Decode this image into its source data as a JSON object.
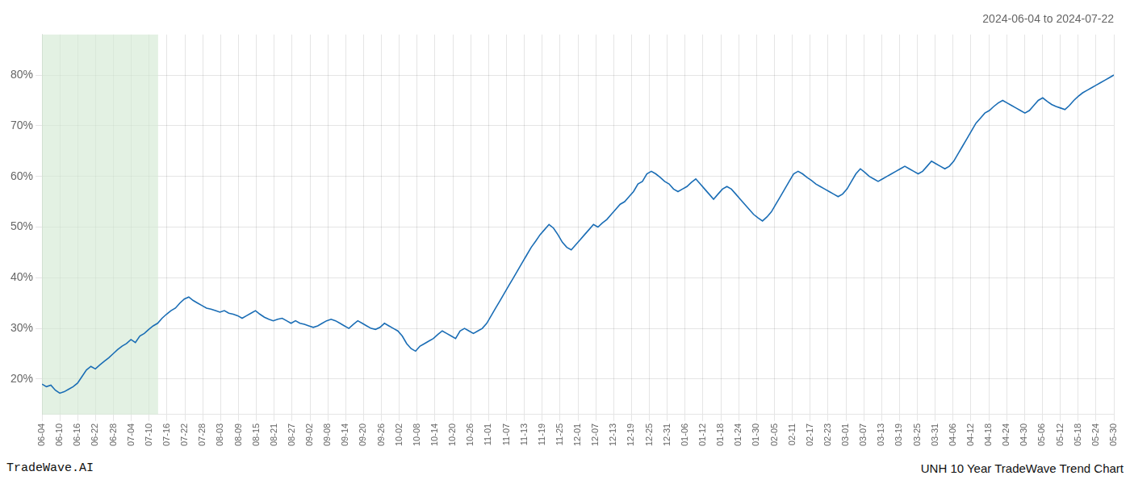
{
  "chart_data": {
    "type": "line",
    "title": "2024-06-04 to 2024-07-22",
    "footer_left": "TradeWave.AI",
    "footer_right": "UNH 10 Year TradeWave Trend Chart",
    "color": "#1a6db5",
    "grid": true,
    "xlim": [
      0,
      241
    ],
    "xticks": [
      {
        "value": 0,
        "label": "06-04"
      },
      {
        "value": 4.0167,
        "label": "06-10"
      },
      {
        "value": 8.0333,
        "label": "06-16"
      },
      {
        "value": 12.05,
        "label": "06-22"
      },
      {
        "value": 16.0667,
        "label": "06-28"
      },
      {
        "value": 20.0833,
        "label": "07-04"
      },
      {
        "value": 24.1,
        "label": "07-10"
      },
      {
        "value": 28.1167,
        "label": "07-16"
      },
      {
        "value": 32.1333,
        "label": "07-22"
      },
      {
        "value": 36.15,
        "label": "07-28"
      },
      {
        "value": 40.1667,
        "label": "08-03"
      },
      {
        "value": 44.1833,
        "label": "08-09"
      },
      {
        "value": 48.2,
        "label": "08-15"
      },
      {
        "value": 52.2167,
        "label": "08-21"
      },
      {
        "value": 56.2333,
        "label": "08-27"
      },
      {
        "value": 60.25,
        "label": "09-02"
      },
      {
        "value": 64.2667,
        "label": "09-08"
      },
      {
        "value": 68.2833,
        "label": "09-14"
      },
      {
        "value": 72.3,
        "label": "09-20"
      },
      {
        "value": 76.3167,
        "label": "09-26"
      },
      {
        "value": 80.3333,
        "label": "10-02"
      },
      {
        "value": 84.35,
        "label": "10-08"
      },
      {
        "value": 88.3667,
        "label": "10-14"
      },
      {
        "value": 92.3833,
        "label": "10-20"
      },
      {
        "value": 96.4,
        "label": "10-26"
      },
      {
        "value": 100.4167,
        "label": "11-01"
      },
      {
        "value": 104.4333,
        "label": "11-07"
      },
      {
        "value": 108.45,
        "label": "11-13"
      },
      {
        "value": 112.4667,
        "label": "11-19"
      },
      {
        "value": 116.4833,
        "label": "11-25"
      },
      {
        "value": 120.5,
        "label": "12-01"
      },
      {
        "value": 124.5167,
        "label": "12-07"
      },
      {
        "value": 128.5333,
        "label": "12-13"
      },
      {
        "value": 132.55,
        "label": "12-19"
      },
      {
        "value": 136.5667,
        "label": "12-25"
      },
      {
        "value": 140.5833,
        "label": "12-31"
      },
      {
        "value": 144.6,
        "label": "01-06"
      },
      {
        "value": 148.6167,
        "label": "01-12"
      },
      {
        "value": 152.6333,
        "label": "01-18"
      },
      {
        "value": 156.65,
        "label": "01-24"
      },
      {
        "value": 160.6667,
        "label": "01-30"
      },
      {
        "value": 164.6833,
        "label": "02-05"
      },
      {
        "value": 168.7,
        "label": "02-11"
      },
      {
        "value": 172.7167,
        "label": "02-17"
      },
      {
        "value": 176.7333,
        "label": "02-23"
      },
      {
        "value": 180.75,
        "label": "03-01"
      },
      {
        "value": 184.7667,
        "label": "03-07"
      },
      {
        "value": 188.7833,
        "label": "03-13"
      },
      {
        "value": 192.8,
        "label": "03-19"
      },
      {
        "value": 196.8167,
        "label": "03-25"
      },
      {
        "value": 200.8333,
        "label": "03-31"
      },
      {
        "value": 204.85,
        "label": "04-06"
      },
      {
        "value": 208.8667,
        "label": "04-12"
      },
      {
        "value": 212.8833,
        "label": "04-18"
      },
      {
        "value": 216.9,
        "label": "04-24"
      },
      {
        "value": 220.9167,
        "label": "04-30"
      },
      {
        "value": 224.9333,
        "label": "05-06"
      },
      {
        "value": 228.95,
        "label": "05-12"
      },
      {
        "value": 232.9667,
        "label": "05-18"
      },
      {
        "value": 236.9833,
        "label": "05-24"
      },
      {
        "value": 241,
        "label": "05-30"
      }
    ],
    "ylim": [
      13,
      88
    ],
    "yticks": [
      {
        "value": 20,
        "label": "20%"
      },
      {
        "value": 30,
        "label": "30%"
      },
      {
        "value": 40,
        "label": "40%"
      },
      {
        "value": 50,
        "label": "50%"
      },
      {
        "value": 60,
        "label": "60%"
      },
      {
        "value": 70,
        "label": "70%"
      },
      {
        "value": 80,
        "label": "80%"
      }
    ],
    "shaded_region": {
      "start": 0,
      "end": 26.1083,
      "color": "#d4ead4"
    },
    "values": [
      19.0,
      18.5,
      18.8,
      17.8,
      17.2,
      17.5,
      18.0,
      18.5,
      19.2,
      20.5,
      21.8,
      22.5,
      22.0,
      22.8,
      23.5,
      24.2,
      25.0,
      25.8,
      26.5,
      27.0,
      27.8,
      27.2,
      28.5,
      29.0,
      29.8,
      30.5,
      31.0,
      32.0,
      32.8,
      33.5,
      34.0,
      35.0,
      35.8,
      36.2,
      35.5,
      35.0,
      34.5,
      34.0,
      33.8,
      33.5,
      33.2,
      33.5,
      33.0,
      32.8,
      32.5,
      32.0,
      32.5,
      33.0,
      33.5,
      32.8,
      32.2,
      31.8,
      31.5,
      31.8,
      32.0,
      31.5,
      31.0,
      31.5,
      31.0,
      30.8,
      30.5,
      30.2,
      30.5,
      31.0,
      31.5,
      31.8,
      31.5,
      31.0,
      30.5,
      30.0,
      30.8,
      31.5,
      31.0,
      30.5,
      30.0,
      29.8,
      30.2,
      31.0,
      30.5,
      30.0,
      29.5,
      28.5,
      27.0,
      26.0,
      25.5,
      26.5,
      27.0,
      27.5,
      28.0,
      28.8,
      29.5,
      29.0,
      28.5,
      28.0,
      29.5,
      30.0,
      29.5,
      29.0,
      29.5,
      30.0,
      31.0,
      32.5,
      34.0,
      35.5,
      37.0,
      38.5,
      40.0,
      41.5,
      43.0,
      44.5,
      46.0,
      47.2,
      48.5,
      49.5,
      50.5,
      49.8,
      48.5,
      47.0,
      46.0,
      45.5,
      46.5,
      47.5,
      48.5,
      49.5,
      50.5,
      50.0,
      50.8,
      51.5,
      52.5,
      53.5,
      54.5,
      55.0,
      56.0,
      57.0,
      58.5,
      59.0,
      60.5,
      61.0,
      60.5,
      59.8,
      59.0,
      58.5,
      57.5,
      57.0,
      57.5,
      58.0,
      58.8,
      59.5,
      58.5,
      57.5,
      56.5,
      55.5,
      56.5,
      57.5,
      58.0,
      57.5,
      56.5,
      55.5,
      54.5,
      53.5,
      52.5,
      51.8,
      51.2,
      52.0,
      53.0,
      54.5,
      56.0,
      57.5,
      59.0,
      60.5,
      61.0,
      60.5,
      59.8,
      59.2,
      58.5,
      58.0,
      57.5,
      57.0,
      56.5,
      56.0,
      56.5,
      57.5,
      59.0,
      60.5,
      61.5,
      60.8,
      60.0,
      59.5,
      59.0,
      59.5,
      60.0,
      60.5,
      61.0,
      61.5,
      62.0,
      61.5,
      61.0,
      60.5,
      61.0,
      62.0,
      63.0,
      62.5,
      62.0,
      61.5,
      62.0,
      63.0,
      64.5,
      66.0,
      67.5,
      69.0,
      70.5,
      71.5,
      72.5,
      73.0,
      73.8,
      74.5,
      75.0,
      74.5,
      74.0,
      73.5,
      73.0,
      72.5,
      73.0,
      74.0,
      75.0,
      75.5,
      74.8,
      74.2,
      73.8,
      73.5,
      73.2,
      74.0,
      75.0,
      75.8,
      76.5,
      77.0,
      77.5,
      78.0,
      78.5,
      79.0,
      79.5,
      80.0
    ]
  }
}
